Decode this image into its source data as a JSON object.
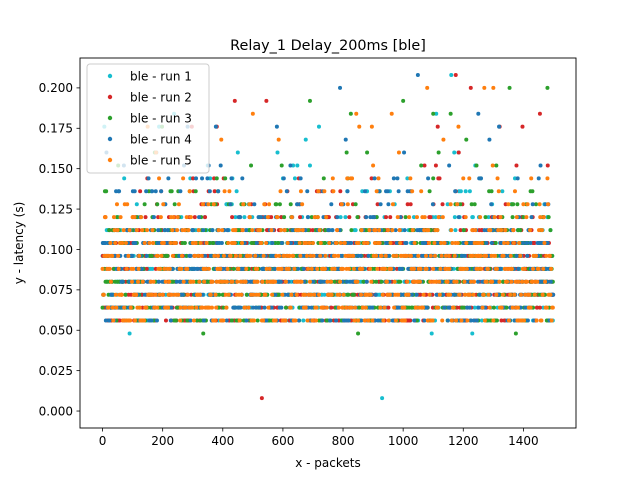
{
  "chart_data": {
    "type": "scatter",
    "title": "Relay_1 Delay_200ms [ble]",
    "xlabel": "x - packets",
    "ylabel": "y - latency (s)",
    "xlim": [
      -75,
      1575
    ],
    "ylim": [
      -0.0105,
      0.2185
    ],
    "x_ticks": [
      0,
      200,
      400,
      600,
      800,
      1000,
      1200,
      1400
    ],
    "y_ticks": [
      0.0,
      0.025,
      0.05,
      0.075,
      0.1,
      0.125,
      0.15,
      0.175,
      0.2
    ],
    "x_tick_labels": [
      "0",
      "200",
      "400",
      "600",
      "800",
      "1000",
      "1200",
      "1400"
    ],
    "y_tick_labels": [
      "0.000",
      "0.025",
      "0.050",
      "0.075",
      "0.100",
      "0.125",
      "0.150",
      "0.175",
      "0.200"
    ],
    "grid": false,
    "legend_position": "upper-left",
    "packets_per_run": 1500,
    "latency_levels": [
      0.056,
      0.064,
      0.072,
      0.08,
      0.088,
      0.096,
      0.104,
      0.112,
      0.12,
      0.128,
      0.136,
      0.144,
      0.152,
      0.16,
      0.168,
      0.176,
      0.184,
      0.192,
      0.2,
      0.208
    ],
    "series": [
      {
        "name": "ble - run 1",
        "color": "#17becf",
        "outliers": [
          {
            "x": 90,
            "y": 0.048
          },
          {
            "x": 930,
            "y": 0.008
          },
          {
            "x": 1095,
            "y": 0.048
          },
          {
            "x": 1230,
            "y": 0.048
          },
          {
            "x": 1160,
            "y": 0.208
          },
          {
            "x": 720,
            "y": 0.176
          },
          {
            "x": 1480,
            "y": 0.12
          }
        ]
      },
      {
        "name": "ble - run 2",
        "color": "#d62728",
        "outliers": [
          {
            "x": 530,
            "y": 0.008
          },
          {
            "x": 440,
            "y": 0.192
          },
          {
            "x": 545,
            "y": 0.192
          },
          {
            "x": 1175,
            "y": 0.208
          },
          {
            "x": 1455,
            "y": 0.184
          },
          {
            "x": 380,
            "y": 0.176
          }
        ]
      },
      {
        "name": "ble - run 3",
        "color": "#2ca02c",
        "outliers": [
          {
            "x": 335,
            "y": 0.048
          },
          {
            "x": 850,
            "y": 0.048
          },
          {
            "x": 1375,
            "y": 0.048
          },
          {
            "x": 1480,
            "y": 0.2
          },
          {
            "x": 690,
            "y": 0.192
          },
          {
            "x": 1000,
            "y": 0.192
          },
          {
            "x": 1100,
            "y": 0.184
          }
        ]
      },
      {
        "name": "ble - run 4",
        "color": "#1f77b4",
        "outliers": [
          {
            "x": 790,
            "y": 0.2
          },
          {
            "x": 1250,
            "y": 0.184
          },
          {
            "x": 580,
            "y": 0.176
          }
        ]
      },
      {
        "name": "ble - run 5",
        "color": "#ff7f0e",
        "outliers": [
          {
            "x": 1080,
            "y": 0.2
          },
          {
            "x": 1270,
            "y": 0.2
          },
          {
            "x": 1300,
            "y": 0.2
          },
          {
            "x": 395,
            "y": 0.168
          }
        ]
      }
    ]
  }
}
